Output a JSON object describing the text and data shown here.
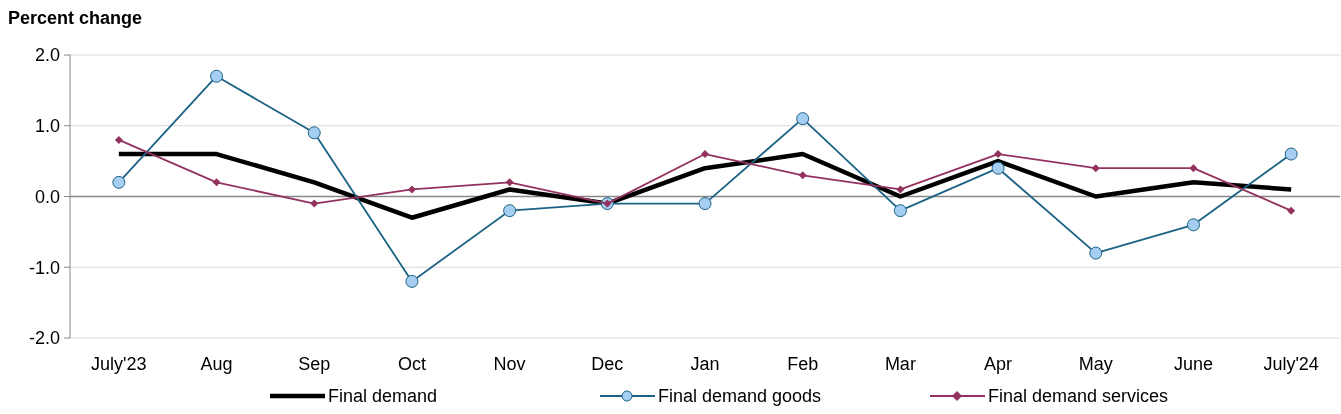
{
  "chart_data": {
    "type": "line",
    "ylabel": "Percent change",
    "categories": [
      "July'23",
      "Aug",
      "Sep",
      "Oct",
      "Nov",
      "Dec",
      "Jan",
      "Feb",
      "Mar",
      "Apr",
      "May",
      "June",
      "July'24"
    ],
    "series": [
      {
        "name": "Final demand",
        "color": "#000000",
        "marker": "none",
        "values": [
          0.6,
          0.6,
          0.2,
          -0.3,
          0.1,
          -0.1,
          0.4,
          0.6,
          0.0,
          0.5,
          0.0,
          0.2,
          0.1
        ]
      },
      {
        "name": "Final demand goods",
        "color": "#1b6284",
        "marker": "circle",
        "values": [
          0.2,
          1.7,
          0.9,
          -1.2,
          -0.2,
          -0.1,
          -0.1,
          1.1,
          -0.2,
          0.4,
          -0.8,
          -0.4,
          0.6
        ]
      },
      {
        "name": "Final demand services",
        "color": "#93325f",
        "marker": "diamond",
        "values": [
          0.8,
          0.2,
          -0.1,
          0.1,
          0.2,
          -0.1,
          0.6,
          0.3,
          0.1,
          0.6,
          0.4,
          0.4,
          -0.2
        ]
      }
    ],
    "ylim": [
      -2,
      2
    ],
    "yticks": [
      {
        "value": -2,
        "label": "-2.0"
      },
      {
        "value": -1,
        "label": "-1.0"
      },
      {
        "value": 0,
        "label": "0.0"
      },
      {
        "value": 1,
        "label": "1.0"
      },
      {
        "value": 2,
        "label": "2.0"
      }
    ],
    "grid": "y",
    "legend": "bottom"
  }
}
